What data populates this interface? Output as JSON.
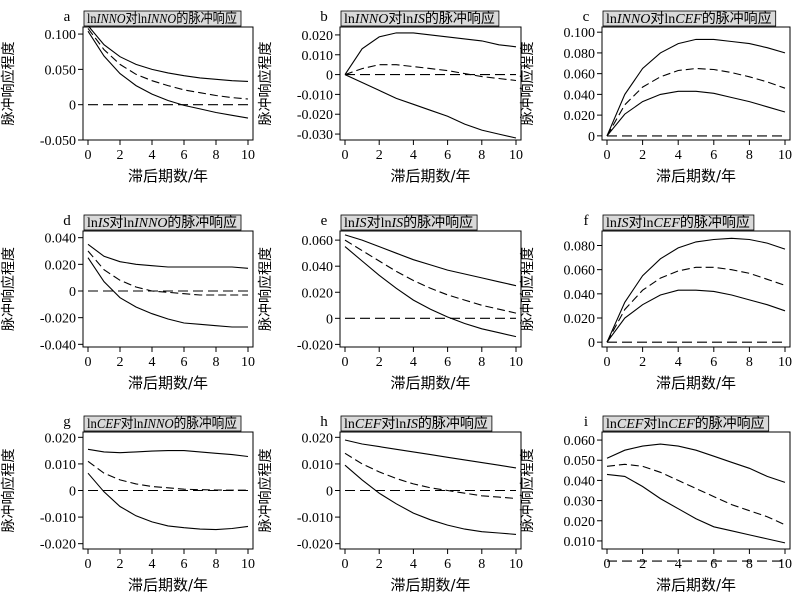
{
  "chart_data": [
    {
      "type": "line",
      "letter": "a",
      "title": [
        {
          "t": "ln"
        },
        {
          "t": "INNO",
          "i": true
        },
        {
          "t": "对"
        },
        {
          "t": "ln"
        },
        {
          "t": "INNO",
          "i": true
        },
        {
          "t": "的脉冲响应"
        }
      ],
      "xlabel": "滞后期数/年",
      "ylabel": "脉冲响应程度",
      "xticks": [
        0,
        2,
        4,
        6,
        8,
        10
      ],
      "yticks": [
        -0.05,
        0,
        0.05,
        0.1
      ],
      "ytick_labels": [
        "-0.050",
        "0",
        "0.050",
        "0.100"
      ],
      "xlim": [
        0,
        10
      ],
      "ylim": [
        -0.05,
        0.11
      ],
      "x": [
        0,
        1,
        2,
        3,
        4,
        5,
        6,
        7,
        8,
        9,
        10
      ],
      "series": [
        {
          "style": "solid",
          "values": [
            0.112,
            0.085,
            0.068,
            0.057,
            0.05,
            0.045,
            0.041,
            0.038,
            0.036,
            0.034,
            0.033
          ]
        },
        {
          "style": "dashed",
          "values": [
            0.108,
            0.078,
            0.057,
            0.043,
            0.034,
            0.027,
            0.021,
            0.017,
            0.013,
            0.01,
            0.008
          ]
        },
        {
          "style": "solid",
          "values": [
            0.104,
            0.069,
            0.044,
            0.027,
            0.015,
            0.006,
            -0.001,
            -0.006,
            -0.011,
            -0.015,
            -0.019
          ]
        },
        {
          "style": "zero",
          "values": [
            0,
            0,
            0,
            0,
            0,
            0,
            0,
            0,
            0,
            0,
            0
          ]
        }
      ]
    },
    {
      "type": "line",
      "letter": "b",
      "title": [
        {
          "t": "ln"
        },
        {
          "t": "INNO",
          "i": true
        },
        {
          "t": "对"
        },
        {
          "t": "ln"
        },
        {
          "t": "IS",
          "i": true
        },
        {
          "t": "的脉冲响应"
        }
      ],
      "xlabel": "滞后期数/年",
      "ylabel": "脉冲响应程度",
      "xticks": [
        0,
        2,
        4,
        6,
        8,
        10
      ],
      "yticks": [
        -0.03,
        -0.02,
        -0.01,
        0,
        0.01,
        0.02
      ],
      "ytick_labels": [
        "-0.030",
        "-0.020",
        "-0.010",
        "0",
        "0.010",
        "0.020"
      ],
      "xlim": [
        0,
        10
      ],
      "ylim": [
        -0.033,
        0.024
      ],
      "x": [
        0,
        1,
        2,
        3,
        4,
        5,
        6,
        7,
        8,
        9,
        10
      ],
      "series": [
        {
          "style": "solid",
          "values": [
            0,
            0.013,
            0.019,
            0.021,
            0.021,
            0.02,
            0.019,
            0.018,
            0.017,
            0.015,
            0.014
          ]
        },
        {
          "style": "dashed",
          "values": [
            0,
            0.003,
            0.005,
            0.005,
            0.004,
            0.003,
            0.002,
            0.0005,
            -0.001,
            -0.002,
            -0.003
          ]
        },
        {
          "style": "solid",
          "values": [
            0,
            -0.004,
            -0.008,
            -0.012,
            -0.015,
            -0.018,
            -0.021,
            -0.025,
            -0.028,
            -0.03,
            -0.032
          ]
        },
        {
          "style": "zero",
          "values": [
            0,
            0,
            0,
            0,
            0,
            0,
            0,
            0,
            0,
            0,
            0
          ]
        }
      ]
    },
    {
      "type": "line",
      "letter": "c",
      "title": [
        {
          "t": "ln"
        },
        {
          "t": "INNO",
          "i": true
        },
        {
          "t": "对"
        },
        {
          "t": "ln"
        },
        {
          "t": "CEF",
          "i": true
        },
        {
          "t": "的脉冲响应"
        }
      ],
      "xlabel": "滞后期数/年",
      "ylabel": "脉冲响应程度",
      "xticks": [
        0,
        2,
        4,
        6,
        8,
        10
      ],
      "yticks": [
        0,
        0.02,
        0.04,
        0.06,
        0.08,
        0.1
      ],
      "ytick_labels": [
        "0",
        "0.020",
        "0.040",
        "0.060",
        "0.080",
        "0.100"
      ],
      "xlim": [
        0,
        10
      ],
      "ylim": [
        -0.004,
        0.105
      ],
      "x": [
        0,
        1,
        2,
        3,
        4,
        5,
        6,
        7,
        8,
        9,
        10
      ],
      "series": [
        {
          "style": "solid",
          "values": [
            0,
            0.04,
            0.065,
            0.08,
            0.089,
            0.093,
            0.093,
            0.091,
            0.089,
            0.085,
            0.08
          ]
        },
        {
          "style": "dashed",
          "values": [
            0,
            0.03,
            0.047,
            0.057,
            0.063,
            0.065,
            0.064,
            0.061,
            0.057,
            0.052,
            0.046
          ]
        },
        {
          "style": "solid",
          "values": [
            0,
            0.021,
            0.033,
            0.04,
            0.043,
            0.043,
            0.041,
            0.037,
            0.033,
            0.028,
            0.023
          ]
        },
        {
          "style": "zero",
          "values": [
            0,
            0,
            0,
            0,
            0,
            0,
            0,
            0,
            0,
            0,
            0
          ]
        }
      ]
    },
    {
      "type": "line",
      "letter": "d",
      "title": [
        {
          "t": "ln"
        },
        {
          "t": "IS",
          "i": true
        },
        {
          "t": "对"
        },
        {
          "t": "ln"
        },
        {
          "t": "INNO",
          "i": true
        },
        {
          "t": "的脉冲响应"
        }
      ],
      "xlabel": "滞后期数/年",
      "ylabel": "脉冲响应程度",
      "xticks": [
        0,
        2,
        4,
        6,
        8,
        10
      ],
      "yticks": [
        -0.04,
        -0.02,
        0,
        0.02,
        0.04
      ],
      "ytick_labels": [
        "-0.040",
        "-0.020",
        "0",
        "0.020",
        "0.040"
      ],
      "xlim": [
        0,
        10
      ],
      "ylim": [
        -0.042,
        0.045
      ],
      "x": [
        0,
        1,
        2,
        3,
        4,
        5,
        6,
        7,
        8,
        9,
        10
      ],
      "series": [
        {
          "style": "solid",
          "values": [
            0.035,
            0.026,
            0.022,
            0.02,
            0.019,
            0.018,
            0.018,
            0.018,
            0.018,
            0.018,
            0.017
          ]
        },
        {
          "style": "dashed",
          "values": [
            0.03,
            0.016,
            0.008,
            0.003,
            0,
            -0.001,
            -0.002,
            -0.003,
            -0.003,
            -0.003,
            -0.003
          ]
        },
        {
          "style": "solid",
          "values": [
            0.025,
            0.007,
            -0.005,
            -0.012,
            -0.017,
            -0.021,
            -0.024,
            -0.025,
            -0.026,
            -0.027,
            -0.027
          ]
        },
        {
          "style": "zero",
          "values": [
            0,
            0,
            0,
            0,
            0,
            0,
            0,
            0,
            0,
            0,
            0
          ]
        }
      ]
    },
    {
      "type": "line",
      "letter": "e",
      "title": [
        {
          "t": "ln"
        },
        {
          "t": "IS",
          "i": true
        },
        {
          "t": "对"
        },
        {
          "t": "ln"
        },
        {
          "t": "IS",
          "i": true
        },
        {
          "t": "的脉冲响应"
        }
      ],
      "xlabel": "滞后期数/年",
      "ylabel": "脉冲响应程度",
      "xticks": [
        0,
        2,
        4,
        6,
        8,
        10
      ],
      "yticks": [
        -0.02,
        0,
        0.02,
        0.04,
        0.06
      ],
      "ytick_labels": [
        "-0.020",
        "0",
        "0.020",
        "0.040",
        "0.060"
      ],
      "xlim": [
        0,
        10
      ],
      "ylim": [
        -0.022,
        0.067
      ],
      "x": [
        0,
        1,
        2,
        3,
        4,
        5,
        6,
        7,
        8,
        9,
        10
      ],
      "series": [
        {
          "style": "solid",
          "values": [
            0.064,
            0.06,
            0.055,
            0.05,
            0.045,
            0.041,
            0.037,
            0.034,
            0.031,
            0.028,
            0.025
          ]
        },
        {
          "style": "dashed",
          "values": [
            0.06,
            0.052,
            0.044,
            0.036,
            0.029,
            0.023,
            0.018,
            0.014,
            0.01,
            0.007,
            0.004
          ]
        },
        {
          "style": "solid",
          "values": [
            0.055,
            0.044,
            0.033,
            0.023,
            0.014,
            0.007,
            0.001,
            -0.004,
            -0.008,
            -0.011,
            -0.014
          ]
        },
        {
          "style": "zero",
          "values": [
            0,
            0,
            0,
            0,
            0,
            0,
            0,
            0,
            0,
            0,
            0
          ]
        }
      ]
    },
    {
      "type": "line",
      "letter": "f",
      "title": [
        {
          "t": "ln"
        },
        {
          "t": "IS",
          "i": true
        },
        {
          "t": "对"
        },
        {
          "t": "ln"
        },
        {
          "t": "CEF",
          "i": true
        },
        {
          "t": "的脉冲响应"
        }
      ],
      "xlabel": "滞后期数/年",
      "ylabel": "脉冲响应程度",
      "xticks": [
        0,
        2,
        4,
        6,
        8,
        10
      ],
      "yticks": [
        0,
        0.02,
        0.04,
        0.06,
        0.08
      ],
      "ytick_labels": [
        "0",
        "0.020",
        "0.040",
        "0.060",
        "0.080"
      ],
      "xlim": [
        0,
        10
      ],
      "ylim": [
        -0.004,
        0.092
      ],
      "x": [
        0,
        1,
        2,
        3,
        4,
        5,
        6,
        7,
        8,
        9,
        10
      ],
      "series": [
        {
          "style": "solid",
          "values": [
            0,
            0.033,
            0.055,
            0.069,
            0.078,
            0.083,
            0.085,
            0.086,
            0.085,
            0.082,
            0.077
          ]
        },
        {
          "style": "dashed",
          "values": [
            0,
            0.027,
            0.043,
            0.053,
            0.059,
            0.062,
            0.062,
            0.06,
            0.057,
            0.052,
            0.047
          ]
        },
        {
          "style": "solid",
          "values": [
            0,
            0.02,
            0.031,
            0.039,
            0.043,
            0.043,
            0.042,
            0.039,
            0.035,
            0.031,
            0.026
          ]
        },
        {
          "style": "zero",
          "values": [
            0,
            0,
            0,
            0,
            0,
            0,
            0,
            0,
            0,
            0,
            0
          ]
        }
      ]
    },
    {
      "type": "line",
      "letter": "g",
      "title": [
        {
          "t": "ln"
        },
        {
          "t": "CEF",
          "i": true
        },
        {
          "t": "对"
        },
        {
          "t": "ln"
        },
        {
          "t": "INNO",
          "i": true
        },
        {
          "t": "的脉冲响应"
        }
      ],
      "xlabel": "滞后期数/年",
      "ylabel": "脉冲响应程度",
      "xticks": [
        0,
        2,
        4,
        6,
        8,
        10
      ],
      "yticks": [
        -0.02,
        -0.01,
        0,
        0.01,
        0.02
      ],
      "ytick_labels": [
        "-0.020",
        "-0.010",
        "0",
        "0.010",
        "0.020"
      ],
      "xlim": [
        0,
        10
      ],
      "ylim": [
        -0.022,
        0.022
      ],
      "x": [
        0,
        1,
        2,
        3,
        4,
        5,
        6,
        7,
        8,
        9,
        10
      ],
      "series": [
        {
          "style": "solid",
          "values": [
            0.0155,
            0.0145,
            0.0142,
            0.0145,
            0.0148,
            0.015,
            0.015,
            0.0145,
            0.014,
            0.0135,
            0.0128
          ]
        },
        {
          "style": "dashed",
          "values": [
            0.011,
            0.0065,
            0.004,
            0.0025,
            0.0015,
            0.001,
            0.0005,
            0.0003,
            0.0002,
            0.0001,
            0.0001
          ]
        },
        {
          "style": "solid",
          "values": [
            0.0065,
            -0.0005,
            -0.006,
            -0.0095,
            -0.0118,
            -0.0133,
            -0.014,
            -0.0145,
            -0.0147,
            -0.0143,
            -0.0135
          ]
        },
        {
          "style": "zero",
          "values": [
            0,
            0,
            0,
            0,
            0,
            0,
            0,
            0,
            0,
            0,
            0
          ]
        }
      ]
    },
    {
      "type": "line",
      "letter": "h",
      "title": [
        {
          "t": "ln"
        },
        {
          "t": "CEF",
          "i": true
        },
        {
          "t": "对"
        },
        {
          "t": "ln"
        },
        {
          "t": "IS",
          "i": true
        },
        {
          "t": "的脉冲响应"
        }
      ],
      "xlabel": "滞后期数/年",
      "ylabel": "脉冲响应程度",
      "xticks": [
        0,
        2,
        4,
        6,
        8,
        10
      ],
      "yticks": [
        -0.02,
        -0.01,
        0,
        0.01,
        0.02
      ],
      "ytick_labels": [
        "-0.020",
        "-0.010",
        "0",
        "0.010",
        "0.020"
      ],
      "xlim": [
        0,
        10
      ],
      "ylim": [
        -0.022,
        0.022
      ],
      "x": [
        0,
        1,
        2,
        3,
        4,
        5,
        6,
        7,
        8,
        9,
        10
      ],
      "series": [
        {
          "style": "solid",
          "values": [
            0.019,
            0.0175,
            0.0165,
            0.0155,
            0.0145,
            0.0135,
            0.0125,
            0.0115,
            0.0105,
            0.0095,
            0.0085
          ]
        },
        {
          "style": "dashed",
          "values": [
            0.014,
            0.01,
            0.007,
            0.0045,
            0.0025,
            0.001,
            0,
            -0.001,
            -0.002,
            -0.0025,
            -0.003
          ]
        },
        {
          "style": "solid",
          "values": [
            0.0095,
            0.004,
            -0.001,
            -0.005,
            -0.0085,
            -0.011,
            -0.013,
            -0.0145,
            -0.0155,
            -0.016,
            -0.0165
          ]
        },
        {
          "style": "zero",
          "values": [
            0,
            0,
            0,
            0,
            0,
            0,
            0,
            0,
            0,
            0,
            0
          ]
        }
      ]
    },
    {
      "type": "line",
      "letter": "i",
      "title": [
        {
          "t": "ln"
        },
        {
          "t": "CEF",
          "i": true
        },
        {
          "t": "对"
        },
        {
          "t": "ln"
        },
        {
          "t": "CEF",
          "i": true
        },
        {
          "t": "的脉冲响应"
        }
      ],
      "xlabel": "滞后期数/年",
      "ylabel": "脉冲响应程度",
      "xticks": [
        0,
        2,
        4,
        6,
        8,
        10
      ],
      "yticks": [
        0.01,
        0.02,
        0.03,
        0.04,
        0.05,
        0.06
      ],
      "ytick_labels": [
        "0.010",
        "0.020",
        "0.030",
        "0.040",
        "0.050",
        "0.060"
      ],
      "xlim": [
        0,
        10
      ],
      "ylim": [
        0.006,
        0.064
      ],
      "x": [
        0,
        1,
        2,
        3,
        4,
        5,
        6,
        7,
        8,
        9,
        10
      ],
      "series": [
        {
          "style": "solid",
          "values": [
            0.051,
            0.055,
            0.057,
            0.058,
            0.057,
            0.055,
            0.052,
            0.049,
            0.046,
            0.042,
            0.039
          ]
        },
        {
          "style": "dashed",
          "values": [
            0.047,
            0.048,
            0.047,
            0.044,
            0.04,
            0.036,
            0.032,
            0.028,
            0.025,
            0.022,
            0.018
          ]
        },
        {
          "style": "solid",
          "values": [
            0.043,
            0.042,
            0.037,
            0.031,
            0.026,
            0.021,
            0.017,
            0.015,
            0.013,
            0.011,
            0.009
          ]
        },
        {
          "style": "zero",
          "values": [
            0,
            0,
            0,
            0,
            0,
            0,
            0,
            0,
            0,
            0,
            0
          ]
        }
      ]
    }
  ]
}
